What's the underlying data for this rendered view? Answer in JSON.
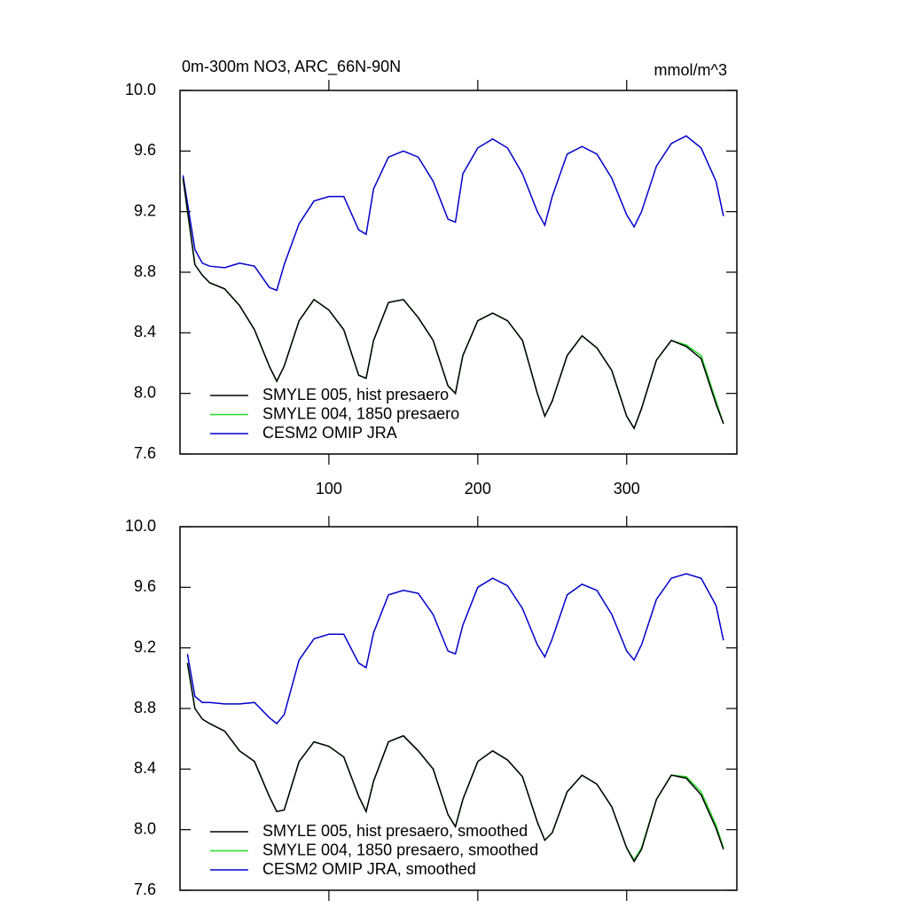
{
  "chart_data": [
    {
      "type": "line",
      "title": "0m-300m NO3, ARC_66N-90N",
      "units": "mmol/m^3",
      "x": [
        2,
        10,
        15,
        20,
        30,
        40,
        50,
        60,
        65,
        70,
        80,
        90,
        100,
        110,
        120,
        125,
        130,
        140,
        150,
        160,
        170,
        180,
        185,
        190,
        200,
        210,
        220,
        230,
        240,
        245,
        250,
        260,
        270,
        280,
        290,
        300,
        305,
        310,
        320,
        330,
        340,
        350,
        360,
        365
      ],
      "xlim": [
        0,
        374
      ],
      "xticks": [
        100,
        200,
        300
      ],
      "xtick_labels": true,
      "ylim": [
        7.6,
        10.0
      ],
      "yticks": [
        7.6,
        {
          "value": 8.0,
          "label": "8.0"
        },
        8.4,
        8.8,
        9.2,
        9.6,
        {
          "value": 10.0,
          "label": "10.0"
        }
      ],
      "legend": "lower left",
      "series": [
        {
          "name": "SMYLE 005, hist presaero",
          "color": "#000000",
          "values": [
            9.42,
            8.85,
            8.78,
            8.73,
            8.69,
            8.58,
            8.42,
            8.18,
            8.08,
            8.18,
            8.48,
            8.62,
            8.55,
            8.42,
            8.12,
            8.1,
            8.35,
            8.6,
            8.62,
            8.5,
            8.35,
            8.05,
            8.0,
            8.25,
            8.48,
            8.53,
            8.48,
            8.35,
            8.0,
            7.85,
            7.95,
            8.25,
            8.38,
            8.3,
            8.15,
            7.85,
            7.77,
            7.9,
            8.22,
            8.35,
            8.31,
            8.23,
            7.93,
            7.8
          ]
        },
        {
          "name": "SMYLE 004, 1850 presaero",
          "color": "#22dd22",
          "values": [
            9.42,
            8.85,
            8.78,
            8.73,
            8.69,
            8.58,
            8.42,
            8.18,
            8.08,
            8.18,
            8.48,
            8.62,
            8.55,
            8.42,
            8.12,
            8.1,
            8.35,
            8.6,
            8.62,
            8.5,
            8.35,
            8.05,
            8.0,
            8.25,
            8.48,
            8.53,
            8.48,
            8.35,
            8.0,
            7.85,
            7.95,
            8.25,
            8.38,
            8.3,
            8.15,
            7.85,
            7.77,
            7.9,
            8.22,
            8.35,
            8.32,
            8.25,
            7.95,
            7.8
          ]
        },
        {
          "name": "CESM2 OMIP JRA",
          "color": "#0000cc",
          "values": [
            9.44,
            8.95,
            8.86,
            8.84,
            8.83,
            8.86,
            8.84,
            8.7,
            8.68,
            8.85,
            9.12,
            9.27,
            9.3,
            9.3,
            9.08,
            9.05,
            9.35,
            9.56,
            9.6,
            9.56,
            9.4,
            9.15,
            9.13,
            9.45,
            9.62,
            9.68,
            9.62,
            9.45,
            9.2,
            9.11,
            9.3,
            9.58,
            9.63,
            9.58,
            9.42,
            9.18,
            9.1,
            9.2,
            9.5,
            9.65,
            9.7,
            9.62,
            9.4,
            9.17
          ]
        }
      ]
    },
    {
      "type": "line",
      "x": [
        5,
        10,
        15,
        20,
        30,
        40,
        50,
        60,
        65,
        70,
        80,
        90,
        100,
        110,
        120,
        125,
        130,
        140,
        150,
        160,
        170,
        180,
        185,
        190,
        200,
        210,
        220,
        230,
        240,
        245,
        250,
        260,
        270,
        280,
        290,
        300,
        305,
        310,
        320,
        330,
        340,
        350,
        360,
        365
      ],
      "xlim": [
        0,
        374
      ],
      "xticks": [
        100,
        200,
        300
      ],
      "xtick_labels": false,
      "ylim": [
        7.6,
        10.0
      ],
      "yticks": [
        7.6,
        {
          "value": 8.0,
          "label": "8.0"
        },
        8.4,
        8.8,
        9.2,
        9.6,
        {
          "value": 10.0,
          "label": "10.0"
        }
      ],
      "legend": "lower left",
      "series": [
        {
          "name": "SMYLE 005, hist presaero, smoothed",
          "color": "#000000",
          "values": [
            9.1,
            8.8,
            8.73,
            8.7,
            8.65,
            8.52,
            8.45,
            8.22,
            8.12,
            8.13,
            8.45,
            8.58,
            8.55,
            8.48,
            8.22,
            8.12,
            8.32,
            8.58,
            8.62,
            8.52,
            8.4,
            8.1,
            8.02,
            8.2,
            8.45,
            8.52,
            8.46,
            8.35,
            8.05,
            7.93,
            7.98,
            8.25,
            8.36,
            8.3,
            8.15,
            7.88,
            7.79,
            7.87,
            8.2,
            8.36,
            8.34,
            8.23,
            8.01,
            7.87
          ]
        },
        {
          "name": "SMYLE 004, 1850 presaero, smoothed",
          "color": "#22dd22",
          "values": [
            9.1,
            8.8,
            8.73,
            8.7,
            8.65,
            8.52,
            8.45,
            8.22,
            8.12,
            8.13,
            8.45,
            8.58,
            8.55,
            8.48,
            8.22,
            8.12,
            8.32,
            8.58,
            8.62,
            8.52,
            8.4,
            8.1,
            8.02,
            8.2,
            8.45,
            8.52,
            8.46,
            8.35,
            8.05,
            7.93,
            7.98,
            8.25,
            8.36,
            8.3,
            8.15,
            7.88,
            7.8,
            7.88,
            8.2,
            8.36,
            8.35,
            8.25,
            8.03,
            7.88
          ]
        },
        {
          "name": "CESM2 OMIP JRA, smoothed",
          "color": "#0000cc",
          "values": [
            9.16,
            8.88,
            8.84,
            8.84,
            8.83,
            8.83,
            8.84,
            8.74,
            8.7,
            8.76,
            9.12,
            9.26,
            9.29,
            9.29,
            9.1,
            9.07,
            9.3,
            9.55,
            9.58,
            9.56,
            9.42,
            9.18,
            9.16,
            9.35,
            9.6,
            9.66,
            9.61,
            9.46,
            9.22,
            9.14,
            9.26,
            9.55,
            9.62,
            9.58,
            9.42,
            9.18,
            9.12,
            9.22,
            9.52,
            9.66,
            9.69,
            9.66,
            9.48,
            9.25
          ]
        }
      ]
    }
  ]
}
